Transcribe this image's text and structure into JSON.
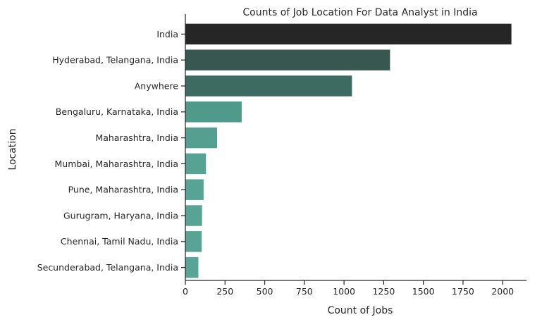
{
  "chart_data": {
    "type": "bar",
    "orientation": "horizontal",
    "title": "Counts of Job Location For Data Analyst in India",
    "xlabel": "Count of Jobs",
    "ylabel": "Location",
    "categories": [
      "India",
      "Hyderabad, Telangana, India",
      "Anywhere",
      "Bengaluru, Karnataka, India",
      "Maharashtra, India",
      "Mumbai, Maharashtra, India",
      "Pune, Maharashtra, India",
      "Gurugram, Haryana, India",
      "Chennai, Tamil Nadu, India",
      "Secunderabad, Telangana, India"
    ],
    "values": [
      2055,
      1290,
      1050,
      355,
      200,
      130,
      115,
      105,
      103,
      82
    ],
    "bar_colors": [
      "#262626",
      "#37574f",
      "#3e6b61",
      "#509a8b",
      "#549f90",
      "#56a393",
      "#57a494",
      "#57a494",
      "#57a494",
      "#58a595"
    ],
    "xlim": [
      0,
      2150
    ],
    "xticks": [
      0,
      250,
      500,
      750,
      1000,
      1250,
      1500,
      1750,
      2000
    ],
    "grid": false,
    "legend": "none"
  }
}
